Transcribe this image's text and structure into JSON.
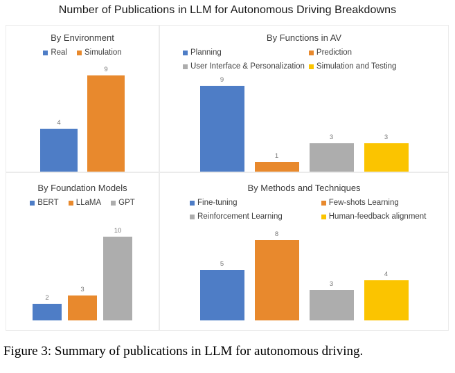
{
  "figure": {
    "title": "Number of Publications in LLM for Autonomous Driving Breakdowns",
    "caption": "Figure 3: Summary of publications in LLM for autonomous driving."
  },
  "palette": {
    "blue": "#4E7DC6",
    "orange": "#E8892D",
    "gray": "#ADADAD",
    "yellow": "#FBC400",
    "panel_border": "#EBEBEB",
    "value_label": "#777777"
  },
  "chart_data": [
    {
      "type": "bar",
      "title": "By Environment",
      "categories": [
        "Real",
        "Simulation"
      ],
      "values": [
        4,
        9
      ],
      "colors": [
        "#4E7DC6",
        "#E8892D"
      ],
      "ylim": [
        0,
        9
      ],
      "grid": false,
      "legend_position": "top",
      "data_labels": true
    },
    {
      "type": "bar",
      "title": "By Functions in AV",
      "categories": [
        "Planning",
        "Prediction",
        "User Interface & Personalization",
        "Simulation and Testing"
      ],
      "values": [
        9,
        1,
        3,
        3
      ],
      "colors": [
        "#4E7DC6",
        "#E8892D",
        "#ADADAD",
        "#FBC400"
      ],
      "ylim": [
        0,
        9
      ],
      "grid": false,
      "legend_position": "top",
      "data_labels": true
    },
    {
      "type": "bar",
      "title": "By Foundation Models",
      "categories": [
        "BERT",
        "LLaMA",
        "GPT"
      ],
      "values": [
        2,
        3,
        10
      ],
      "colors": [
        "#4E7DC6",
        "#E8892D",
        "#ADADAD"
      ],
      "ylim": [
        0,
        10
      ],
      "grid": false,
      "legend_position": "top",
      "data_labels": true
    },
    {
      "type": "bar",
      "title": "By Methods and Techniques",
      "categories": [
        "Fine-tuning",
        "Few-shots Learning",
        "Reinforcement Learning",
        "Human-feedback alignment"
      ],
      "values": [
        5,
        8,
        3,
        4
      ],
      "colors": [
        "#4E7DC6",
        "#E8892D",
        "#ADADAD",
        "#FBC400"
      ],
      "ylim": [
        0,
        8
      ],
      "grid": false,
      "legend_position": "top",
      "data_labels": true
    }
  ]
}
